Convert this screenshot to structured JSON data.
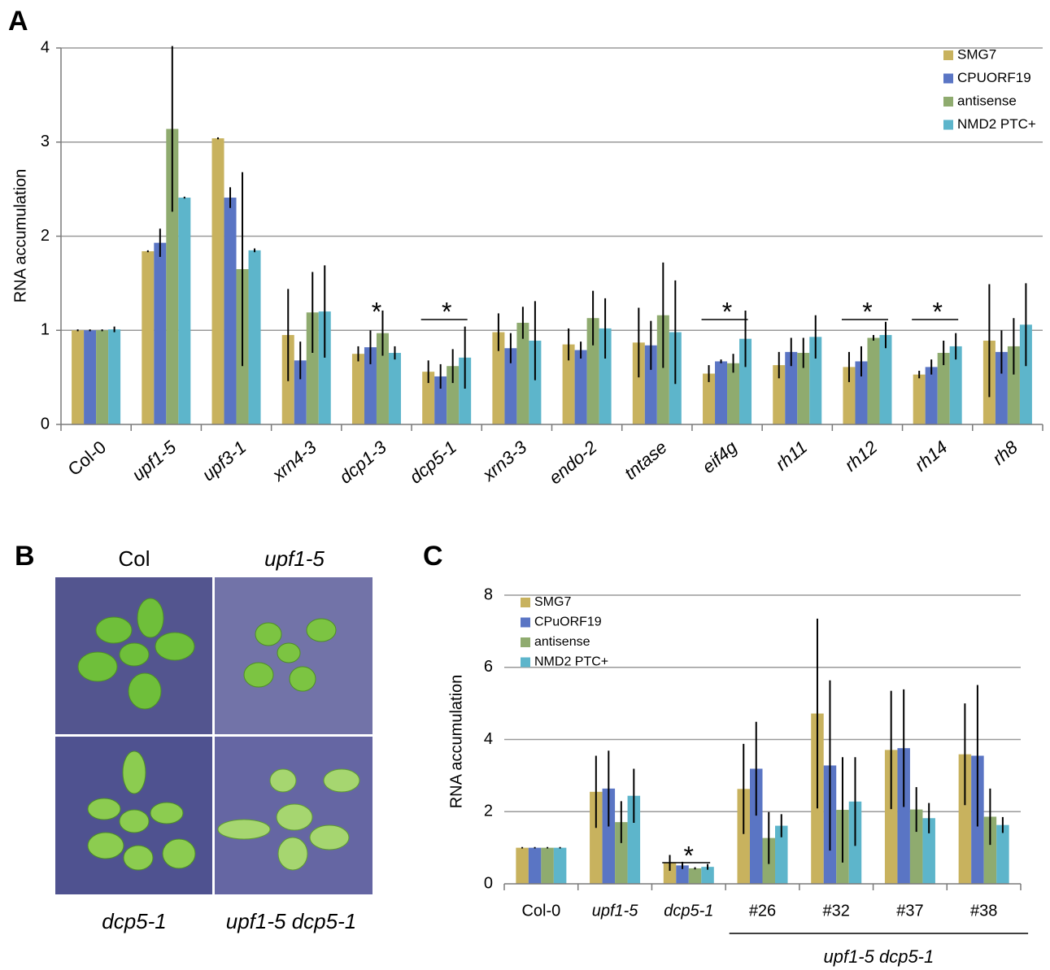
{
  "panel_labels": [
    "A",
    "B",
    "C"
  ],
  "photo_panel": {
    "labels": [
      "Col",
      "upf1-5",
      "dcp5-1",
      "upf1-5 dcp5-1"
    ]
  },
  "chart_data": [
    {
      "type": "bar",
      "y_label": "RNA accumulation",
      "categories": [
        "Col-0",
        "upf1-5",
        "upf3-1",
        "xrn4-3",
        "dcp1-3",
        "dcp5-1",
        "xrn3-3",
        "endo-2",
        "tntase",
        "eif4g",
        "rh11",
        "rh12",
        "rh14",
        "rh8"
      ],
      "italic": [
        false,
        true,
        true,
        true,
        true,
        true,
        true,
        true,
        true,
        true,
        true,
        true,
        true,
        true
      ],
      "series": [
        {
          "name": "SMG7",
          "color": "#c8b25e",
          "values": [
            1.0,
            1.84,
            3.04,
            0.95,
            0.75,
            0.56,
            0.98,
            0.85,
            0.87,
            0.54,
            0.63,
            0.61,
            0.53,
            0.89
          ],
          "errors": [
            0.01,
            0.01,
            0.01,
            0.49,
            0.08,
            0.12,
            0.2,
            0.17,
            0.37,
            0.09,
            0.14,
            0.16,
            0.04,
            0.6
          ]
        },
        {
          "name": "CPUORF19",
          "color": "#5a75c4",
          "values": [
            1.0,
            1.93,
            2.41,
            0.68,
            0.82,
            0.51,
            0.81,
            0.79,
            0.84,
            0.67,
            0.77,
            0.67,
            0.61,
            0.77
          ],
          "errors": [
            0.01,
            0.15,
            0.11,
            0.2,
            0.18,
            0.13,
            0.16,
            0.09,
            0.26,
            0.02,
            0.15,
            0.16,
            0.08,
            0.23
          ]
        },
        {
          "name": "antisense",
          "color": "#8fab6f",
          "values": [
            1.0,
            3.14,
            1.65,
            1.19,
            0.97,
            0.62,
            1.08,
            1.13,
            1.16,
            0.65,
            0.76,
            0.92,
            0.76,
            0.83
          ],
          "errors": [
            0.01,
            0.88,
            1.03,
            0.43,
            0.24,
            0.18,
            0.17,
            0.29,
            0.56,
            0.1,
            0.16,
            0.03,
            0.13,
            0.3
          ]
        },
        {
          "name": "NMD2 PTC+",
          "color": "#5db5cb",
          "values": [
            1.01,
            2.41,
            1.85,
            1.2,
            0.76,
            0.71,
            0.89,
            1.02,
            0.98,
            0.91,
            0.93,
            0.95,
            0.83,
            1.06
          ],
          "errors": [
            0.03,
            0.01,
            0.02,
            0.49,
            0.07,
            0.33,
            0.42,
            0.32,
            0.55,
            0.3,
            0.23,
            0.14,
            0.14,
            0.44
          ]
        }
      ],
      "ylim": [
        0,
        4
      ],
      "yticks": [
        0,
        1,
        2,
        3,
        4
      ],
      "grid": true,
      "legend": "top-right",
      "annotations": [
        {
          "text": "*",
          "category": "dcp1-3",
          "bracket": false
        },
        {
          "text": "*",
          "category": "dcp5-1",
          "bracket": true
        },
        {
          "text": "*",
          "category": "eif4g",
          "bracket": true
        },
        {
          "text": "*",
          "category": "rh12",
          "bracket": true
        },
        {
          "text": "*",
          "category": "rh14",
          "bracket": true
        }
      ]
    },
    {
      "type": "bar",
      "y_label": "RNA accumulation",
      "categories": [
        "Col-0",
        "upf1-5",
        "dcp5-1",
        "#26",
        "#32",
        "#37",
        "#38"
      ],
      "italic": [
        false,
        true,
        true,
        false,
        false,
        false,
        false
      ],
      "series": [
        {
          "name": "SMG7",
          "color": "#c8b25e",
          "values": [
            1.0,
            2.55,
            0.58,
            2.63,
            4.72,
            3.71,
            3.59
          ],
          "errors": [
            0.02,
            1.0,
            0.22,
            1.25,
            2.63,
            1.64,
            1.41
          ]
        },
        {
          "name": "CPuORF19",
          "color": "#5a75c4",
          "values": [
            1.0,
            2.64,
            0.51,
            3.19,
            3.28,
            3.76,
            3.55
          ],
          "errors": [
            0.02,
            1.05,
            0.1,
            1.3,
            2.36,
            1.63,
            1.96
          ]
        },
        {
          "name": "antisense",
          "color": "#8fab6f",
          "values": [
            1.0,
            1.71,
            0.43,
            1.27,
            2.05,
            2.06,
            1.86
          ],
          "errors": [
            0.02,
            0.58,
            0.03,
            0.72,
            1.46,
            0.62,
            0.78
          ]
        },
        {
          "name": "NMD2 PTC+",
          "color": "#5db5cb",
          "values": [
            1.0,
            2.44,
            0.47,
            1.61,
            2.28,
            1.82,
            1.63
          ],
          "errors": [
            0.02,
            0.75,
            0.08,
            0.32,
            1.23,
            0.42,
            0.22
          ]
        }
      ],
      "ylim": [
        0,
        8
      ],
      "yticks": [
        0,
        2,
        4,
        6,
        8
      ],
      "grid": true,
      "legend": "top-left",
      "group_label": {
        "text": "upf1-5 dcp5-1",
        "from": "#26",
        "to": "#38"
      },
      "annotations": [
        {
          "text": "*",
          "category": "dcp5-1",
          "bracket": true
        }
      ]
    }
  ]
}
